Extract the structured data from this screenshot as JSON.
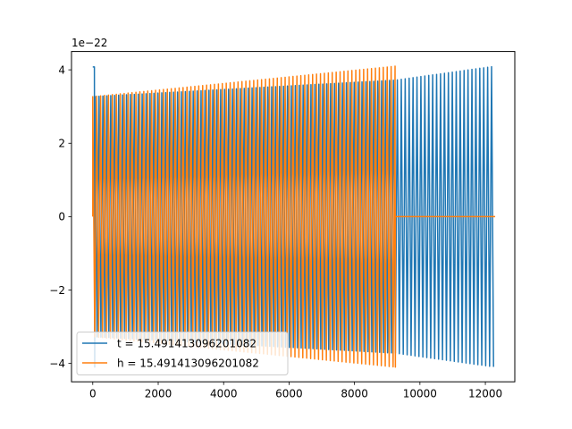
{
  "chart_data": {
    "type": "line",
    "title": "",
    "xlabel": "",
    "ylabel": "",
    "y_offset_label": "1e−22",
    "xlim": [
      -650,
      12900
    ],
    "ylim": [
      -4.5,
      4.5
    ],
    "xticks": [
      0,
      2000,
      4000,
      6000,
      8000,
      10000,
      12000
    ],
    "xtick_labels": [
      "0",
      "2000",
      "4000",
      "6000",
      "8000",
      "10000",
      "12000"
    ],
    "yticks": [
      -4,
      -2,
      0,
      2,
      4
    ],
    "ytick_labels": [
      "−4",
      "−2",
      "0",
      "2",
      "4"
    ],
    "grid": false,
    "legend_position": "lower-left",
    "series": [
      {
        "name": "t = 15.491413096201082",
        "color": "#1f77b4",
        "x_range": [
          0,
          12300
        ],
        "initial_spike": [
          [
            0,
            4.08
          ],
          [
            50,
            4.08
          ],
          [
            60,
            -4.1
          ]
        ],
        "envelope": [
          [
            0,
            3.27
          ],
          [
            9250,
            3.72
          ],
          [
            12300,
            4.1
          ]
        ]
      },
      {
        "name": "h = 15.491413096201082",
        "color": "#ff7f0e",
        "x_range": [
          0,
          12300
        ],
        "oscillation_end": 9250,
        "envelope": [
          [
            0,
            3.27
          ],
          [
            9250,
            4.1
          ]
        ],
        "tail_value": 0
      }
    ]
  }
}
